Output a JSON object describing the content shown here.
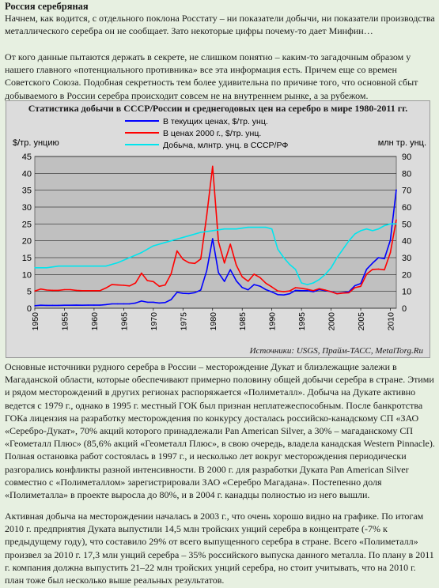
{
  "article": {
    "title": "Россия серебряная",
    "p1": "Начнем, как водится, с отдельного поклона Росстату – ни показатели добычи, ни показатели производства металлического серебра он не сообщает. Зато некоторые цифры почему-то дает Минфин…",
    "p2": "От кого данные пытаются держать в секрете, не слишком понятно – каким-то загадочным образом у нашего главного «потенциального противника» все эта информация есть. Причем еще со времен Советского Союза. Подобная секретность тем более удивительна по причине того, что основной сбыт добываемого в России серебра происходит совсем не на внутреннем рынке, а за рубежом.",
    "p3": "Основные источники рудного серебра в России – месторождение Дукат и близлежащие залежи в Магаданской области, которые обеспечивают примерно половину общей добычи серебра в стране. Этими и рядом месторождений в других регионах распоряжается «Полиметалл». Добыча на Дукате активно ведется с 1979 г., однако в 1995 г. местный ГОК был признан неплатежеспособным. После банкротства ГОКа лицензия на разработку месторождения по конкурсу досталась российско-канадскому СП «ЗАО «Серебро-Дукат», 70% акций которого принадлежали Pan American Silver, а 30% – магаданскому СП «Геометалл Плюс» (85,6% акций «Геометалл Плюс», в свою очередь, владела канадская Western Pinnacle). Полная остановка работ состоялась в 1997 г., и несколько лет вокруг месторождения периодически разгорались конфликты разной интенсивности. В 2000 г. для разработки Дуката Pan American Silver совместно с «Полиметаллом» зарегистрировали ЗАО «Серебро Магадана». Постепенно доля «Полиметалла» в проекте выросла до 80%, и в 2004 г. канадцы полностью из него вышли.",
    "p4": "Активная добыча на месторождении началась в 2003 г., что очень хорошо видно на графике. По итогам 2010 г. предприятия Дуката выпустили 14,5 млн тройских унций серебра в концентрате (-7% к предыдущему году), что составило 29% от всего выпущенного серебра в стране. Всего «Полиметалл» произвел за 2010 г. 17,3 млн унций серебра – 35% российского выпуска данного металла. По плану в 2011 г. компания должна выпустить 21–22 млн тройских унций серебра, но стоит учитывать, что на 2010 г. план тоже был несколько выше реальных результатов."
  },
  "chart_data": {
    "type": "line",
    "title": "Статистика добычи в СССР/России и среднегодовых цен на серебро в мире 1980-2011 гг.",
    "ylabel_left": "$/тр. унцию",
    "ylabel_right": "млн тр. унц.",
    "source": "Источники: USGS, Прайм-ТАСС, MetalTorg.Ru",
    "xlim": [
      1950,
      2011
    ],
    "ylim_left": [
      0,
      45
    ],
    "ylim_right": [
      0,
      90
    ],
    "x_ticks": [
      1950,
      1955,
      1960,
      1965,
      1970,
      1975,
      1980,
      1985,
      1990,
      1995,
      2000,
      2005,
      2010
    ],
    "y_ticks_left": [
      0,
      5,
      10,
      15,
      20,
      25,
      30,
      35,
      40,
      45
    ],
    "y_ticks_right": [
      0,
      10,
      20,
      30,
      40,
      50,
      60,
      70,
      80,
      90
    ],
    "grid": true,
    "legend_position": "top-center",
    "series": [
      {
        "name": "В текущих ценах, $/тр. унц.",
        "axis": "left",
        "color": "#0000ff",
        "x": [
          1950,
          1951,
          1952,
          1953,
          1954,
          1955,
          1956,
          1957,
          1958,
          1959,
          1960,
          1961,
          1962,
          1963,
          1964,
          1965,
          1966,
          1967,
          1968,
          1969,
          1970,
          1971,
          1972,
          1973,
          1974,
          1975,
          1976,
          1977,
          1978,
          1979,
          1980,
          1981,
          1982,
          1983,
          1984,
          1985,
          1986,
          1987,
          1988,
          1989,
          1990,
          1991,
          1992,
          1993,
          1994,
          1995,
          1996,
          1997,
          1998,
          1999,
          2000,
          2001,
          2002,
          2003,
          2004,
          2005,
          2006,
          2007,
          2008,
          2009,
          2010,
          2011
        ],
        "values": [
          0.74,
          0.89,
          0.85,
          0.85,
          0.85,
          0.89,
          0.9,
          0.91,
          0.89,
          0.91,
          0.91,
          0.92,
          1.08,
          1.28,
          1.29,
          1.29,
          1.29,
          1.55,
          2.14,
          1.79,
          1.77,
          1.55,
          1.68,
          2.56,
          4.71,
          4.42,
          4.35,
          4.62,
          5.4,
          11.09,
          20.63,
          10.52,
          7.95,
          11.44,
          8.14,
          6.14,
          5.47,
          7.01,
          6.53,
          5.5,
          4.82,
          4.04,
          3.94,
          4.3,
          5.29,
          5.2,
          5.2,
          4.9,
          5.54,
          5.22,
          4.95,
          4.37,
          4.6,
          4.88,
          6.67,
          7.32,
          11.55,
          13.38,
          14.99,
          14.67,
          20.19,
          35.12
        ]
      },
      {
        "name": "В ценах 2000 г., $/тр. унц.",
        "axis": "left",
        "color": "#ff0000",
        "x": [
          1950,
          1951,
          1952,
          1953,
          1954,
          1955,
          1956,
          1957,
          1958,
          1959,
          1960,
          1961,
          1962,
          1963,
          1964,
          1965,
          1966,
          1967,
          1968,
          1969,
          1970,
          1971,
          1972,
          1973,
          1974,
          1975,
          1976,
          1977,
          1978,
          1979,
          1980,
          1981,
          1982,
          1983,
          1984,
          1985,
          1986,
          1987,
          1988,
          1989,
          1990,
          1991,
          1992,
          1993,
          1994,
          1995,
          1996,
          1997,
          1998,
          1999,
          2000,
          2001,
          2002,
          2003,
          2004,
          2005,
          2006,
          2007,
          2008,
          2009,
          2010,
          2011
        ],
        "values": [
          5.1,
          5.7,
          5.4,
          5.3,
          5.3,
          5.5,
          5.5,
          5.3,
          5.2,
          5.2,
          5.2,
          5.2,
          6.0,
          7.0,
          6.9,
          6.8,
          6.6,
          7.5,
          10.4,
          8.2,
          7.9,
          6.5,
          6.9,
          10.2,
          17.0,
          14.5,
          13.5,
          13.3,
          14.6,
          27.4,
          42.1,
          19.7,
          13.4,
          19.0,
          12.8,
          9.3,
          8.0,
          10.1,
          9.1,
          7.4,
          6.3,
          5.1,
          4.9,
          5.1,
          6.1,
          5.9,
          5.6,
          5.2,
          5.8,
          5.4,
          4.9,
          4.3,
          4.5,
          4.6,
          6.1,
          6.5,
          10.1,
          11.5,
          11.6,
          11.4,
          16.5,
          26.2
        ]
      },
      {
        "name": "Добыча, млнтр. унц. в СССР/РФ",
        "axis": "right",
        "color": "#00e5ee",
        "x": [
          1950,
          1952,
          1954,
          1956,
          1958,
          1960,
          1962,
          1964,
          1966,
          1968,
          1970,
          1972,
          1974,
          1976,
          1978,
          1980,
          1982,
          1984,
          1986,
          1988,
          1989,
          1990,
          1991,
          1992,
          1993,
          1994,
          1995,
          1996,
          1997,
          1998,
          1999,
          2000,
          2001,
          2002,
          2003,
          2004,
          2005,
          2006,
          2007,
          2008,
          2009,
          2010,
          2011
        ],
        "values": [
          24,
          24,
          25,
          25,
          25,
          25,
          25,
          27,
          30,
          33,
          37,
          39,
          41,
          43,
          45,
          46,
          47,
          47,
          48,
          48,
          48,
          47,
          35,
          30,
          26,
          23,
          15,
          14,
          15,
          17,
          20,
          24,
          30,
          35,
          40,
          44,
          46,
          47,
          46,
          47,
          49,
          50,
          50
        ]
      }
    ]
  }
}
